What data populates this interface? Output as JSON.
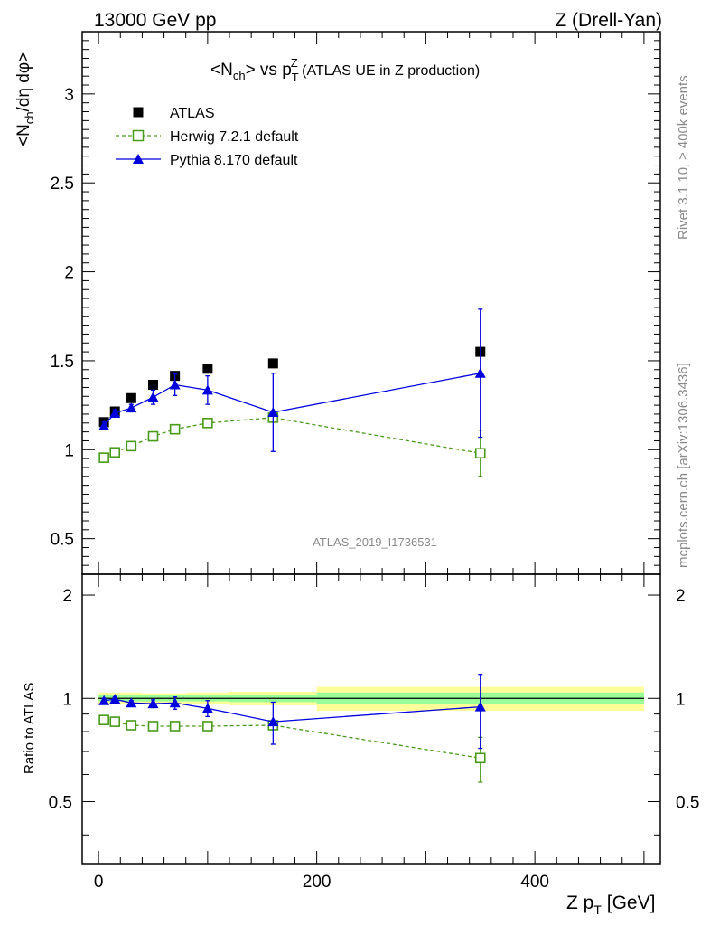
{
  "header": {
    "left": "13000 GeV pp",
    "right": "Z (Drell-Yan)"
  },
  "side_text": {
    "rivet": "Rivet 3.1.10, ≥ 400k events",
    "mcplots": "mcplots.cern.ch [arXiv:1306.3436]"
  },
  "watermark": "ATLAS_2019_I1736531",
  "chart_data": [
    {
      "type": "scatter",
      "title": {
        "pre": "<N",
        "sub1": "ch",
        "mid": "> vs p",
        "sub2": "T",
        "sup2": "Z",
        "post": " (ATLAS UE in Z production)"
      },
      "ylabel": {
        "a": "<N",
        "sub1": "ch",
        "b": "/dη dφ>"
      },
      "xlim": [
        -15,
        515
      ],
      "ylim": [
        0.3,
        3.35
      ],
      "yticks": [
        0.5,
        1,
        1.5,
        2,
        2.5,
        3
      ],
      "ytick_labels": [
        "0.5",
        "1",
        "1.5",
        "2",
        "2.5",
        "3"
      ],
      "legend_position": "top-left",
      "series": [
        {
          "name": "ATLAS",
          "color": "#000000",
          "marker": "square-filled",
          "x": [
            5,
            15,
            30,
            50,
            70,
            100,
            160,
            350
          ],
          "y": [
            1.155,
            1.215,
            1.29,
            1.365,
            1.415,
            1.455,
            1.485,
            1.55
          ]
        },
        {
          "name": "Herwig 7.2.1 default",
          "color": "#4a9a1a",
          "marker": "square-open",
          "line": "dashed",
          "x": [
            5,
            15,
            30,
            50,
            70,
            100,
            160,
            350
          ],
          "y": [
            0.955,
            0.985,
            1.02,
            1.075,
            1.115,
            1.15,
            1.18,
            0.98
          ],
          "err": [
            0.01,
            0.01,
            0.01,
            0.01,
            0.01,
            0.01,
            0.02,
            0.13
          ]
        },
        {
          "name": "Pythia 8.170 default",
          "color": "#0000dd",
          "marker": "triangle-filled",
          "line": "solid",
          "x": [
            5,
            15,
            30,
            50,
            70,
            100,
            160,
            350
          ],
          "y": [
            1.135,
            1.205,
            1.235,
            1.295,
            1.365,
            1.335,
            1.21,
            1.43
          ],
          "err": [
            0.02,
            0.02,
            0.02,
            0.04,
            0.06,
            0.08,
            0.22,
            0.36
          ]
        }
      ]
    },
    {
      "type": "scatter",
      "ylabel": "Ratio to ATLAS",
      "xlabel": {
        "a": "Z p",
        "sub": "T",
        "b": " [GeV]"
      },
      "xlim": [
        -15,
        515
      ],
      "ylim": [
        0.33,
        2.3
      ],
      "xticks": [
        0,
        200,
        400
      ],
      "xtick_labels": [
        "0",
        "200",
        "400"
      ],
      "yticks": [
        0.5,
        1,
        2
      ],
      "ytick_labels": [
        "0.5",
        "1",
        "2"
      ],
      "bands": [
        {
          "x0": 0,
          "x1": 40,
          "yellow": [
            0.96,
            1.04
          ],
          "green": [
            0.98,
            1.02
          ]
        },
        {
          "x0": 40,
          "x1": 80,
          "yellow": [
            0.965,
            1.035
          ],
          "green": [
            0.98,
            1.02
          ]
        },
        {
          "x0": 80,
          "x1": 120,
          "yellow": [
            0.96,
            1.04
          ],
          "green": [
            0.98,
            1.02
          ]
        },
        {
          "x0": 120,
          "x1": 200,
          "yellow": [
            0.955,
            1.045
          ],
          "green": [
            0.975,
            1.025
          ]
        },
        {
          "x0": 200,
          "x1": 500,
          "yellow": [
            0.92,
            1.08
          ],
          "green": [
            0.96,
            1.04
          ]
        }
      ],
      "series": [
        {
          "name": "Herwig 7.2.1 default",
          "color": "#4a9a1a",
          "marker": "square-open",
          "line": "dashed",
          "x": [
            5,
            15,
            30,
            50,
            70,
            100,
            160,
            350
          ],
          "y": [
            0.865,
            0.855,
            0.835,
            0.83,
            0.83,
            0.83,
            0.835,
            0.67
          ],
          "err": [
            0.01,
            0.01,
            0.01,
            0.01,
            0.01,
            0.01,
            0.02,
            0.1
          ]
        },
        {
          "name": "Pythia 8.170 default",
          "color": "#0000dd",
          "marker": "triangle-filled",
          "line": "solid",
          "x": [
            5,
            15,
            30,
            50,
            70,
            100,
            160,
            350
          ],
          "y": [
            0.985,
            0.995,
            0.97,
            0.965,
            0.97,
            0.935,
            0.855,
            0.945
          ],
          "err": [
            0.015,
            0.015,
            0.015,
            0.025,
            0.04,
            0.05,
            0.12,
            0.23
          ]
        }
      ]
    }
  ]
}
